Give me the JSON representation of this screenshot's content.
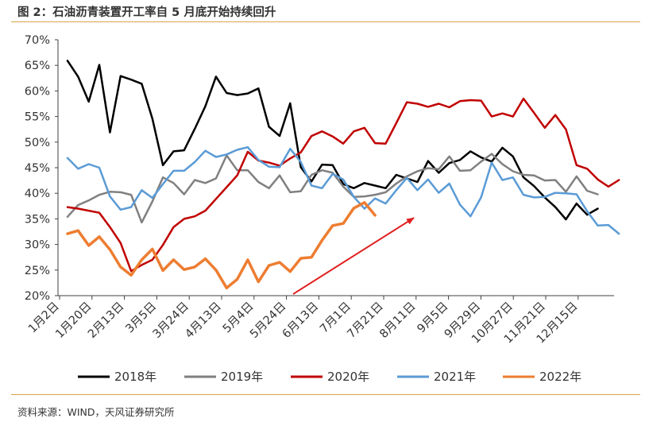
{
  "figure": {
    "title": "图 2：石油沥青装置开工率自 5 月底开始持续回升",
    "source": "资料来源：WIND，天风证券研究所"
  },
  "colors": {
    "rule": "#d9a34a",
    "axis": "#404040",
    "arrow": "#e02020"
  },
  "chart_data": {
    "type": "line",
    "title": "图 2：石油沥青装置开工率自 5 月底开始持续回升",
    "xlabel": "",
    "ylabel": "",
    "ylim": [
      0.2,
      0.7
    ],
    "y_ticks": [
      "20%",
      "25%",
      "30%",
      "35%",
      "40%",
      "45%",
      "50%",
      "55%",
      "60%",
      "65%",
      "70%"
    ],
    "x_ticks": [
      "1月2日",
      "1月20日",
      "2月13日",
      "3月5日",
      "3月24日",
      "4月13日",
      "5月4日",
      "5月24日",
      "6月13日",
      "7月1日",
      "7月21日",
      "8月11日",
      "9月5日",
      "9月29日",
      "10月27日",
      "11月21日",
      "12月15日"
    ],
    "grid": false,
    "legend_position": "bottom",
    "annotation": "red arrow rising from late May to mid-August, highlighting the 2022 recovery",
    "series": [
      {
        "name": "2018年",
        "color": "#000000",
        "values": [
          0.659,
          0.628,
          0.579,
          0.651,
          0.519,
          0.629,
          0.622,
          0.614,
          0.546,
          0.455,
          0.482,
          0.484,
          0.526,
          0.57,
          0.628,
          0.596,
          0.592,
          0.595,
          0.605,
          0.53,
          0.512,
          0.576,
          0.451,
          0.423,
          0.456,
          0.455,
          0.418,
          0.41,
          0.42,
          0.415,
          0.41,
          0.436,
          0.429,
          0.422,
          0.463,
          0.44,
          0.459,
          0.465,
          0.482,
          0.47,
          0.462,
          0.489,
          0.472,
          0.431,
          0.414,
          0.392,
          0.373,
          0.349,
          0.38,
          0.358,
          0.37
        ]
      },
      {
        "name": "2019年",
        "color": "#808080",
        "values": [
          0.354,
          0.377,
          0.386,
          0.397,
          0.403,
          0.402,
          0.397,
          0.343,
          0.384,
          0.431,
          0.42,
          0.398,
          0.426,
          0.42,
          0.429,
          0.474,
          0.445,
          0.445,
          0.422,
          0.41,
          0.435,
          0.402,
          0.404,
          0.436,
          0.445,
          0.44,
          0.413,
          0.393,
          0.394,
          0.397,
          0.402,
          0.419,
          0.433,
          0.443,
          0.449,
          0.447,
          0.472,
          0.444,
          0.445,
          0.462,
          0.477,
          0.457,
          0.443,
          0.436,
          0.435,
          0.425,
          0.426,
          0.403,
          0.433,
          0.405,
          0.398
        ]
      },
      {
        "name": "2020年",
        "color": "#c00000",
        "values": [
          0.373,
          0.37,
          0.366,
          0.362,
          0.334,
          0.303,
          0.248,
          0.26,
          0.27,
          0.299,
          0.334,
          0.35,
          0.355,
          0.366,
          0.389,
          0.412,
          0.435,
          0.481,
          0.464,
          0.46,
          0.454,
          0.468,
          0.48,
          0.512,
          0.521,
          0.511,
          0.497,
          0.521,
          0.528,
          0.498,
          0.497,
          0.537,
          0.578,
          0.575,
          0.569,
          0.575,
          0.568,
          0.58,
          0.582,
          0.581,
          0.55,
          0.556,
          0.55,
          0.585,
          0.557,
          0.528,
          0.553,
          0.525,
          0.455,
          0.448,
          0.427,
          0.413,
          0.426
        ]
      },
      {
        "name": "2021年",
        "color": "#5b9bd5",
        "values": [
          0.469,
          0.448,
          0.457,
          0.45,
          0.394,
          0.368,
          0.373,
          0.406,
          0.391,
          0.418,
          0.444,
          0.444,
          0.461,
          0.483,
          0.471,
          0.476,
          0.485,
          0.49,
          0.465,
          0.452,
          0.451,
          0.487,
          0.461,
          0.415,
          0.41,
          0.438,
          0.427,
          0.393,
          0.37,
          0.39,
          0.38,
          0.406,
          0.43,
          0.406,
          0.427,
          0.401,
          0.419,
          0.378,
          0.355,
          0.392,
          0.46,
          0.426,
          0.431,
          0.397,
          0.392,
          0.393,
          0.401,
          0.4,
          0.398,
          0.365,
          0.337,
          0.338,
          0.321
        ]
      },
      {
        "name": "2022年",
        "color": "#ed7d31",
        "values": [
          0.321,
          0.327,
          0.298,
          0.315,
          0.29,
          0.256,
          0.24,
          0.27,
          0.291,
          0.249,
          0.27,
          0.251,
          0.256,
          0.272,
          0.25,
          0.215,
          0.232,
          0.27,
          0.227,
          0.259,
          0.265,
          0.247,
          0.273,
          0.275,
          0.308,
          0.337,
          0.341,
          0.371,
          0.382,
          0.357
        ]
      }
    ]
  }
}
